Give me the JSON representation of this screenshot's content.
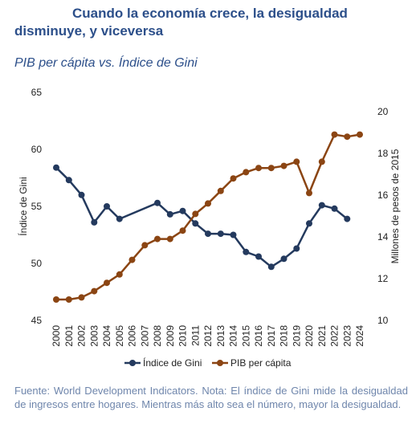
{
  "heading": "Cuando la economía crece, la desigualdad disminuye, y viceversa",
  "chart_data": {
    "type": "line",
    "title": "PIB per cápita vs. Índice de Gini",
    "x": [
      "2000",
      "2001",
      "2002",
      "2003",
      "2004",
      "2005",
      "2006",
      "2007",
      "2008",
      "2009",
      "2010",
      "2011",
      "2012",
      "2013",
      "2014",
      "2015",
      "2016",
      "2017",
      "2018",
      "2019",
      "2020",
      "2021",
      "2022",
      "2023",
      "2024"
    ],
    "y_left": {
      "label": "Índice de Gini",
      "lim": [
        45,
        65
      ],
      "ticks": [
        45,
        50,
        55,
        60,
        65
      ]
    },
    "y_right": {
      "label": "Millones de pesos de 2015",
      "lim": [
        10,
        20
      ],
      "ticks": [
        10,
        12,
        14,
        16,
        18,
        20
      ]
    },
    "series": [
      {
        "name": "Índice de Gini",
        "axis": "left",
        "color": "#243a5e",
        "values": [
          58.4,
          57.3,
          56.0,
          53.6,
          55.0,
          53.9,
          null,
          null,
          55.3,
          54.3,
          54.6,
          53.5,
          52.6,
          52.6,
          52.5,
          51.0,
          50.6,
          49.7,
          50.4,
          51.3,
          53.5,
          55.1,
          54.8,
          53.9,
          null
        ]
      },
      {
        "name": "PIB per cápita",
        "axis": "right",
        "color": "#8b4513",
        "values": [
          11.0,
          11.0,
          11.1,
          11.4,
          11.8,
          12.2,
          12.9,
          13.6,
          13.9,
          13.9,
          14.3,
          15.1,
          15.6,
          16.2,
          16.8,
          17.1,
          17.3,
          17.3,
          17.4,
          17.6,
          16.1,
          17.6,
          18.9,
          18.8,
          18.9
        ]
      }
    ],
    "legend": {
      "position": "bottom",
      "entries": [
        "Índice de Gini",
        "PIB per cápita"
      ]
    },
    "grid": false
  },
  "footnote": "Fuente: World Development Indicators. Nota: El índice de Gini mide la desigualdad de ingresos entre hogares. Mientras más alto sea el número, mayor la desigualdad."
}
